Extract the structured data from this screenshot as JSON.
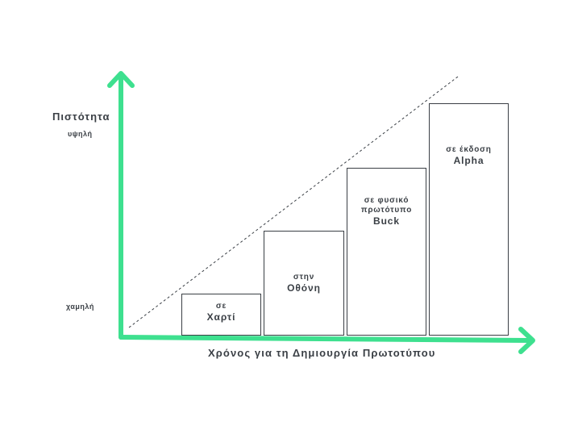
{
  "y_axis": {
    "title": "Πιστότητα",
    "high_label": "υψηλή",
    "low_label": "χαμηλή"
  },
  "x_axis": {
    "title": "Χρόνος για τη Δημιουργία Πρωτοτύπου"
  },
  "stages": [
    {
      "prefix": "σε",
      "name": "Χαρτί"
    },
    {
      "prefix": "στην",
      "name": "Οθόνη"
    },
    {
      "prefix": "σε φυσικό πρωτότυπο",
      "name": "Buck"
    },
    {
      "prefix": "σε έκδοση",
      "name": "Alpha"
    }
  ],
  "colors": {
    "axis": "#3ee08f",
    "text": "#3a3f45",
    "box_border": "#3a3f45",
    "trend_line": "#3a3f45"
  }
}
